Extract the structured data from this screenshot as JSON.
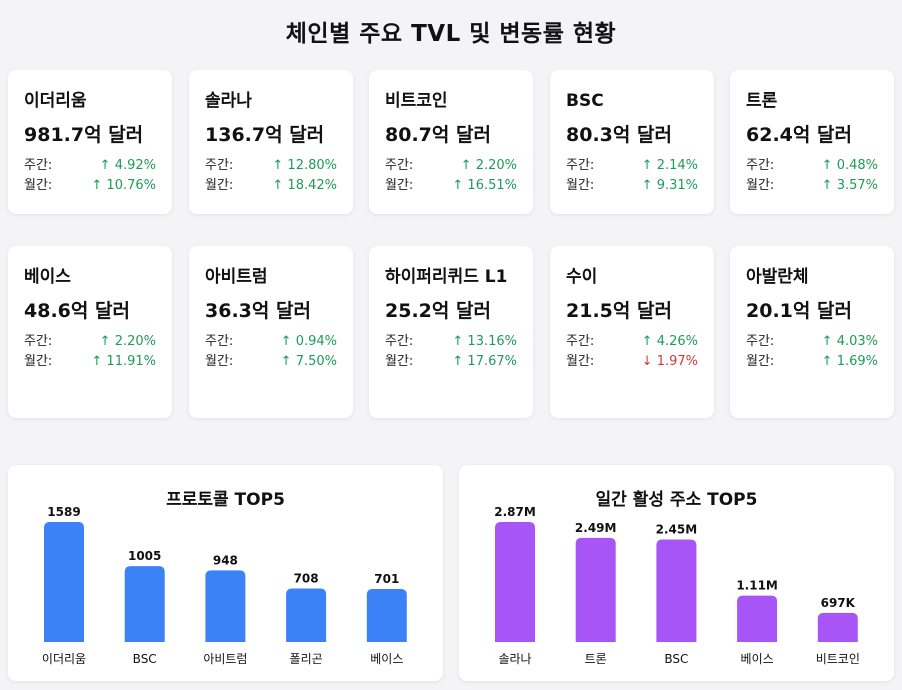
{
  "title": "체인별 주요 TVL 및 변동률 현황",
  "labels": {
    "weekly": "주간:",
    "monthly": "월간:"
  },
  "cards": [
    {
      "name": "이더리움",
      "value": "981.7억 달러",
      "weekly": "↑ 4.92%",
      "weekly_dir": "up",
      "monthly": "↑ 10.76%",
      "monthly_dir": "up"
    },
    {
      "name": "솔라나",
      "value": "136.7억 달러",
      "weekly": "↑ 12.80%",
      "weekly_dir": "up",
      "monthly": "↑ 18.42%",
      "monthly_dir": "up"
    },
    {
      "name": "비트코인",
      "value": "80.7억 달러",
      "weekly": "↑ 2.20%",
      "weekly_dir": "up",
      "monthly": "↑ 16.51%",
      "monthly_dir": "up"
    },
    {
      "name": "BSC",
      "value": "80.3억 달러",
      "weekly": "↑ 2.14%",
      "weekly_dir": "up",
      "monthly": "↑ 9.31%",
      "monthly_dir": "up"
    },
    {
      "name": "트론",
      "value": "62.4억 달러",
      "weekly": "↑ 0.48%",
      "weekly_dir": "up",
      "monthly": "↑ 3.57%",
      "monthly_dir": "up"
    },
    {
      "name": "베이스",
      "value": "48.6억 달러",
      "weekly": "↑ 2.20%",
      "weekly_dir": "up",
      "monthly": "↑ 11.91%",
      "monthly_dir": "up"
    },
    {
      "name": "아비트럼",
      "value": "36.3억 달러",
      "weekly": "↑ 0.94%",
      "weekly_dir": "up",
      "monthly": "↑ 7.50%",
      "monthly_dir": "up"
    },
    {
      "name": "하이퍼리퀴드 L1",
      "value": "25.2억 달러",
      "weekly": "↑ 13.16%",
      "weekly_dir": "up",
      "monthly": "↑ 17.67%",
      "monthly_dir": "up"
    },
    {
      "name": "수이",
      "value": "21.5억 달러",
      "weekly": "↑ 4.26%",
      "weekly_dir": "up",
      "monthly": "↓ 1.97%",
      "monthly_dir": "down"
    },
    {
      "name": "아발란체",
      "value": "20.1억 달러",
      "weekly": "↑ 4.03%",
      "weekly_dir": "up",
      "monthly": "↑ 1.69%",
      "monthly_dir": "up"
    }
  ],
  "colors": {
    "protocol_bar": "#3b82f6",
    "address_bar": "#a855f7",
    "up": "#1e9b5a",
    "down": "#d93636"
  },
  "chart_data": [
    {
      "type": "bar",
      "title": "프로토콜 TOP5",
      "categories": [
        "이더리움",
        "BSC",
        "아비트럼",
        "폴리곤",
        "베이스"
      ],
      "values": [
        1589,
        1005,
        948,
        708,
        701
      ],
      "value_labels": [
        "1589",
        "1005",
        "948",
        "708",
        "701"
      ],
      "ylim": [
        0,
        1589
      ],
      "grid": false
    },
    {
      "type": "bar",
      "title": "일간 활성 주소 TOP5",
      "categories": [
        "솔라나",
        "트론",
        "BSC",
        "베이스",
        "비트코인"
      ],
      "values": [
        2.87,
        2.49,
        2.45,
        1.11,
        0.697
      ],
      "value_labels": [
        "2.87M",
        "2.49M",
        "2.45M",
        "1.11M",
        "697K"
      ],
      "ylim": [
        0,
        2.87
      ],
      "grid": false
    }
  ]
}
